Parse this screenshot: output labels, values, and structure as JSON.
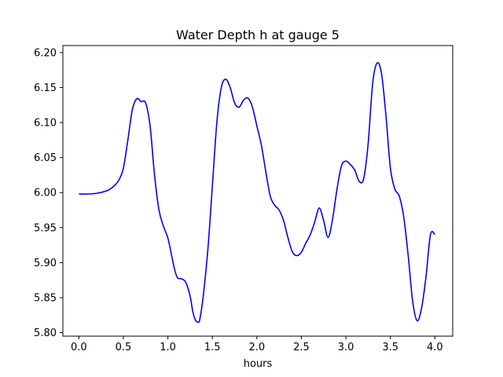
{
  "chart_data": {
    "type": "line",
    "title": "Water Depth h at gauge 5",
    "xlabel": "hours",
    "ylabel": "",
    "xlim": [
      -0.18,
      4.2
    ],
    "ylim": [
      5.795,
      6.21
    ],
    "xticks": [
      0.0,
      0.5,
      1.0,
      1.5,
      2.0,
      2.5,
      3.0,
      3.5,
      4.0
    ],
    "xtick_labels": [
      "0.0",
      "0.5",
      "1.0",
      "1.5",
      "2.0",
      "2.5",
      "3.0",
      "3.5",
      "4.0"
    ],
    "yticks": [
      5.8,
      5.85,
      5.9,
      5.95,
      6.0,
      6.05,
      6.1,
      6.15,
      6.2
    ],
    "ytick_labels": [
      "5.80",
      "5.85",
      "5.90",
      "5.95",
      "6.00",
      "6.05",
      "6.10",
      "6.15",
      "6.20"
    ],
    "grid": false,
    "legend": "none",
    "series": [
      {
        "color": "#0000ff",
        "x": [
          0.0,
          0.1,
          0.2,
          0.3,
          0.35,
          0.4,
          0.45,
          0.5,
          0.55,
          0.6,
          0.65,
          0.7,
          0.75,
          0.8,
          0.85,
          0.9,
          0.95,
          1.0,
          1.05,
          1.08,
          1.11,
          1.15,
          1.2,
          1.25,
          1.28,
          1.31,
          1.34,
          1.36,
          1.4,
          1.45,
          1.5,
          1.55,
          1.6,
          1.65,
          1.7,
          1.75,
          1.8,
          1.85,
          1.9,
          1.95,
          2.0,
          2.05,
          2.1,
          2.15,
          2.2,
          2.25,
          2.3,
          2.35,
          2.4,
          2.45,
          2.5,
          2.55,
          2.6,
          2.65,
          2.7,
          2.75,
          2.8,
          2.85,
          2.9,
          2.95,
          3.0,
          3.05,
          3.1,
          3.15,
          3.2,
          3.25,
          3.3,
          3.35,
          3.4,
          3.45,
          3.5,
          3.55,
          3.6,
          3.65,
          3.7,
          3.75,
          3.8,
          3.85,
          3.9,
          3.95,
          4.0
        ],
        "y": [
          5.998,
          5.998,
          5.999,
          6.002,
          6.005,
          6.01,
          6.018,
          6.035,
          6.075,
          6.118,
          6.134,
          6.13,
          6.128,
          6.095,
          6.025,
          5.975,
          5.952,
          5.935,
          5.905,
          5.888,
          5.878,
          5.877,
          5.872,
          5.852,
          5.83,
          5.818,
          5.815,
          5.82,
          5.855,
          5.92,
          6.01,
          6.1,
          6.15,
          6.162,
          6.15,
          6.128,
          6.122,
          6.132,
          6.135,
          6.122,
          6.095,
          6.068,
          6.03,
          5.995,
          5.982,
          5.975,
          5.96,
          5.935,
          5.915,
          5.91,
          5.915,
          5.928,
          5.94,
          5.958,
          5.978,
          5.96,
          5.936,
          5.962,
          6.005,
          6.038,
          6.045,
          6.04,
          6.032,
          6.016,
          6.02,
          6.07,
          6.155,
          6.185,
          6.17,
          6.11,
          6.035,
          6.005,
          5.995,
          5.965,
          5.91,
          5.845,
          5.817,
          5.835,
          5.88,
          5.94,
          5.94
        ]
      }
    ]
  }
}
